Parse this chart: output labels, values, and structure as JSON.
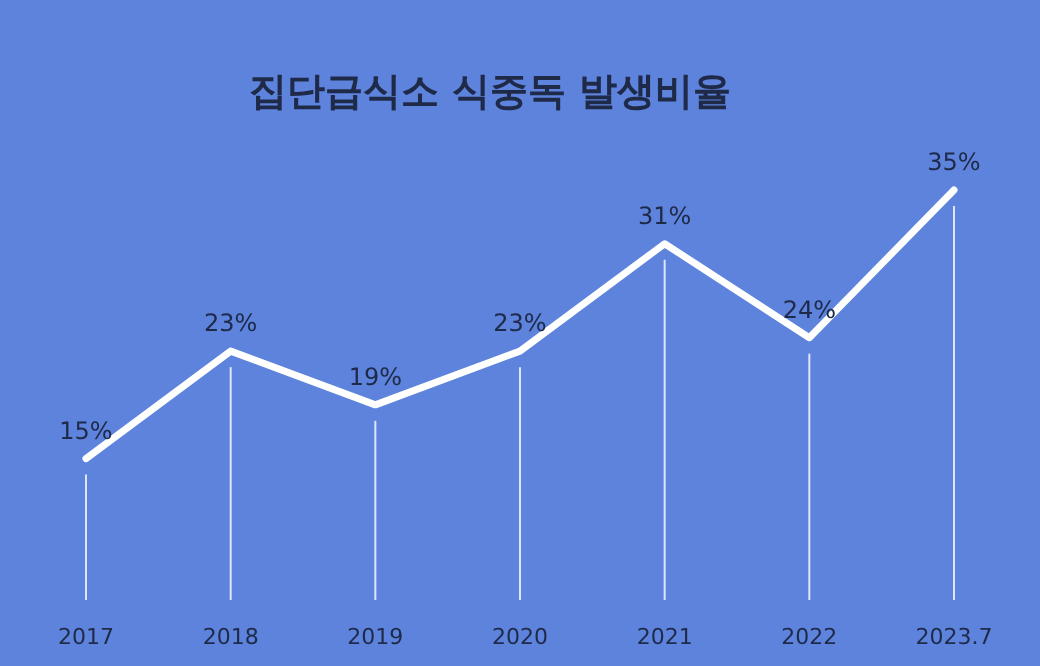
{
  "chart_data": {
    "type": "line",
    "title": "집단급식소 식중독 발생비율",
    "categories": [
      "2017",
      "2018",
      "2019",
      "2020",
      "2021",
      "2022",
      "2023.7"
    ],
    "values": [
      15,
      23,
      19,
      23,
      31,
      24,
      35
    ],
    "value_labels": [
      "15%",
      "23%",
      "19%",
      "23%",
      "31%",
      "24%",
      "35%"
    ],
    "color": "#ffffff",
    "marker": "none",
    "line_style": "solid",
    "grid": "x"
  }
}
